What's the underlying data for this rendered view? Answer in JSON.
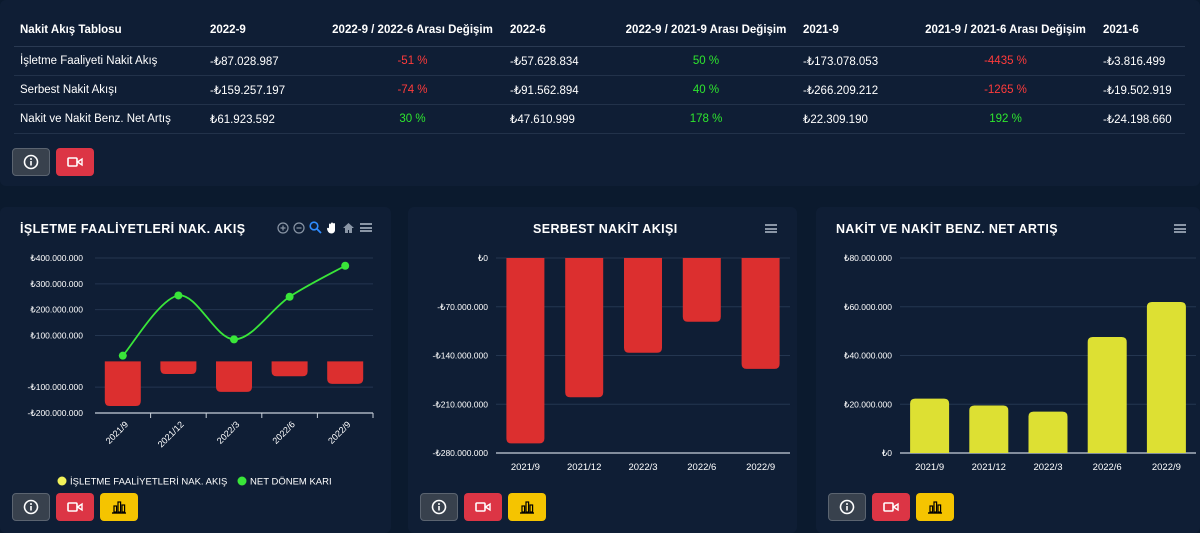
{
  "table": {
    "headers": [
      "Nakit Akış Tablosu",
      "2022-9",
      "2022-9 / 2022-6 Arası Değişim",
      "2022-6",
      "2022-9 / 2021-9 Arası Değişim",
      "2021-9",
      "2021-9 / 2021-6 Arası Değişim",
      "2021-6"
    ],
    "rows": [
      {
        "label": "İşletme Faaliyeti Nakit Akış",
        "c1": "-₺87.028.987",
        "c2": "-51 %",
        "c3": "-₺57.628.834",
        "c4": "50 %",
        "c5": "-₺173.078.053",
        "c6": "-4435 %",
        "c7": "-₺3.816.499"
      },
      {
        "label": "Serbest Nakit Akışı",
        "c1": "-₺159.257.197",
        "c2": "-74 %",
        "c3": "-₺91.562.894",
        "c4": "40 %",
        "c5": "-₺266.209.212",
        "c6": "-1265 %",
        "c7": "-₺19.502.919"
      },
      {
        "label": "Nakit ve Nakit Benz. Net Artış",
        "c1": "₺61.923.592",
        "c2": "30 %",
        "c3": "₺47.610.999",
        "c4": "178 %",
        "c5": "₺22.309.190",
        "c6": "192 %",
        "c7": "-₺24.198.660"
      }
    ]
  },
  "colors": {
    "negative": "#ff3b3b",
    "positive": "#2ee62e",
    "bar_red": "#dc2f2f",
    "bar_yellow": "#dde033",
    "line": "#39e639"
  },
  "chart_data": [
    {
      "type": "bar+line",
      "title": "İŞLETME FAALİYETLERİ NAK. AKIŞ",
      "categories": [
        "2021/9",
        "2021/12",
        "2022/3",
        "2022/6",
        "2022/9"
      ],
      "series": [
        {
          "name": "İŞLETME FAALİYETLERİ NAK. AKIŞ",
          "type": "bar",
          "values": [
            -173078053,
            -49000000,
            -118000000,
            -57628834,
            -87028987
          ]
        },
        {
          "name": "NET DÖNEM KARI",
          "type": "line",
          "values": [
            22000000,
            255000000,
            85000000,
            250000000,
            370000000
          ]
        }
      ],
      "ylim": [
        -200000000,
        400000000
      ],
      "yticks": [
        {
          "v": 400000000,
          "label": "₺400.000.000"
        },
        {
          "v": 300000000,
          "label": "₺300.000.000"
        },
        {
          "v": 200000000,
          "label": "₺200.000.000"
        },
        {
          "v": 100000000,
          "label": "₺100.000.000"
        },
        {
          "v": -100000000,
          "label": "-₺100.000.000"
        },
        {
          "v": -200000000,
          "label": "-₺200.000.000"
        }
      ],
      "legend": [
        "İŞLETME FAALİYETLERİ NAK. AKIŞ",
        "NET DÖNEM KARI"
      ],
      "legend_colors": [
        "#f2f25a",
        "#39e639"
      ]
    },
    {
      "type": "bar",
      "title": "SERBEST NAKİT AKIŞI",
      "categories": [
        "2021/9",
        "2021/12",
        "2022/3",
        "2022/6",
        "2022/9"
      ],
      "values": [
        -266209212,
        -200000000,
        -136000000,
        -91562894,
        -159257197
      ],
      "ylim": [
        -280000000,
        0
      ],
      "yticks": [
        {
          "v": 0,
          "label": "₺0"
        },
        {
          "v": -70000000,
          "label": "-₺70.000.000"
        },
        {
          "v": -140000000,
          "label": "-₺140.000.000"
        },
        {
          "v": -210000000,
          "label": "-₺210.000.000"
        },
        {
          "v": -280000000,
          "label": "-₺280.000.000"
        }
      ]
    },
    {
      "type": "bar",
      "title": "NAKİT VE NAKİT BENZ. NET ARTIŞ",
      "categories": [
        "2021/9",
        "2021/12",
        "2022/3",
        "2022/6",
        "2022/9"
      ],
      "values": [
        22309190,
        19500000,
        17000000,
        47610999,
        61923592
      ],
      "ylim": [
        0,
        80000000
      ],
      "yticks": [
        {
          "v": 80000000,
          "label": "₺80.000.000"
        },
        {
          "v": 60000000,
          "label": "₺60.000.000"
        },
        {
          "v": 40000000,
          "label": "₺40.000.000"
        },
        {
          "v": 20000000,
          "label": "₺20.000.000"
        },
        {
          "v": 0,
          "label": "₺0"
        }
      ]
    }
  ]
}
